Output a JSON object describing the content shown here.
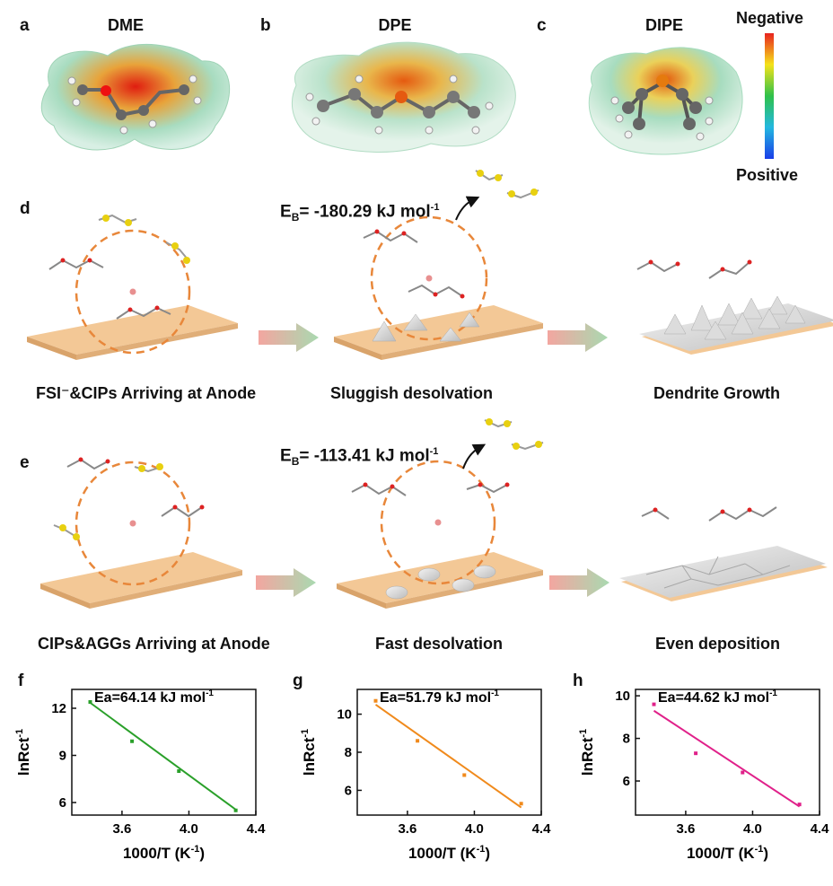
{
  "panels": {
    "a": {
      "letter": "a",
      "title": "DME"
    },
    "b": {
      "letter": "b",
      "title": "DPE"
    },
    "c": {
      "letter": "c",
      "title": "DIPE"
    },
    "d": {
      "letter": "d"
    },
    "e": {
      "letter": "e"
    }
  },
  "colorscale": {
    "top": "Negative",
    "bottom": "Positive"
  },
  "row_d": {
    "eb_prefix": "E",
    "eb_sub": "B",
    "eb_value": "= -180.29 kJ mol",
    "eb_exp": "-1",
    "captions": [
      "FSI⁻&CIPs Arriving at Anode",
      "Sluggish desolvation",
      "Dendrite Growth"
    ]
  },
  "row_e": {
    "eb_prefix": "E",
    "eb_sub": "B",
    "eb_value": "= -113.41 kJ mol",
    "eb_exp": "-1",
    "captions": [
      "CIPs&AGGs Arriving at Anode",
      "Fast desolvation",
      "Even deposition"
    ]
  },
  "colors": {
    "anode": "#f3c896",
    "anode_edge": "#d9a36a",
    "dashed": "#e8873a",
    "plot_f": "#2aa02a",
    "plot_g": "#f08a1c",
    "plot_h": "#e0218a"
  },
  "chart_data": [
    {
      "panel": "f",
      "type": "scatter",
      "xlabel": "1000/T (K",
      "xlabel_exp": "-1",
      "xlabel_end": ")",
      "ylabel": "lnRct",
      "ylabel_exp": "-1",
      "annotation": "Ea=64.14 kJ mol",
      "annotation_exp": "-1",
      "xlim": [
        3.3,
        4.4
      ],
      "ylim": [
        5.2,
        13.2
      ],
      "xticks": [
        "3.6",
        "4.0",
        "4.4"
      ],
      "xtick_values": [
        3.6,
        4.0,
        4.4
      ],
      "yticks": [
        "6",
        "9",
        "12"
      ],
      "ytick_values": [
        6,
        9,
        12
      ],
      "x": [
        3.41,
        3.66,
        3.94,
        4.28
      ],
      "y": [
        12.4,
        9.9,
        8.0,
        5.5
      ],
      "fit": [
        [
          3.41,
          12.35
        ],
        [
          4.28,
          5.55
        ]
      ]
    },
    {
      "panel": "g",
      "type": "scatter",
      "xlabel": "1000/T (K",
      "xlabel_exp": "-1",
      "xlabel_end": ")",
      "ylabel": "lnRct",
      "ylabel_exp": "-1",
      "annotation": "Ea=51.79 kJ mol",
      "annotation_exp": "-1",
      "xlim": [
        3.3,
        4.4
      ],
      "ylim": [
        4.7,
        11.3
      ],
      "xticks": [
        "3.6",
        "4.0",
        "4.4"
      ],
      "xtick_values": [
        3.6,
        4.0,
        4.4
      ],
      "yticks": [
        "6",
        "8",
        "10"
      ],
      "ytick_values": [
        6,
        8,
        10
      ],
      "x": [
        3.41,
        3.66,
        3.94,
        4.28
      ],
      "y": [
        10.7,
        8.6,
        6.8,
        5.3
      ],
      "fit": [
        [
          3.41,
          10.5
        ],
        [
          4.28,
          5.1
        ]
      ]
    },
    {
      "panel": "h",
      "type": "scatter",
      "xlabel": "1000/T (K",
      "xlabel_exp": "-1",
      "xlabel_end": ")",
      "ylabel": "lnRct",
      "ylabel_exp": "-1",
      "annotation": "Ea=44.62 kJ mol",
      "annotation_exp": "-1",
      "xlim": [
        3.3,
        4.4
      ],
      "ylim": [
        4.4,
        10.3
      ],
      "xticks": [
        "3.6",
        "4.0",
        "4.4"
      ],
      "xtick_values": [
        3.6,
        4.0,
        4.4
      ],
      "yticks": [
        "6",
        "8",
        "10"
      ],
      "ytick_values": [
        6,
        8,
        10
      ],
      "x": [
        3.41,
        3.66,
        3.94,
        4.28
      ],
      "y": [
        9.6,
        7.3,
        6.4,
        4.9
      ],
      "fit": [
        [
          3.41,
          9.3
        ],
        [
          4.28,
          4.8
        ]
      ]
    }
  ]
}
